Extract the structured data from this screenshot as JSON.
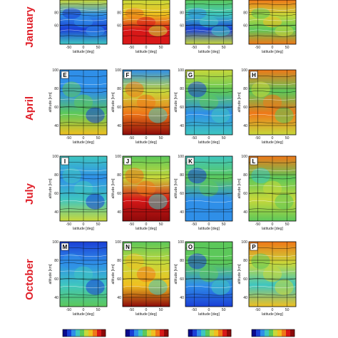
{
  "chart_data": {
    "type": "heatmap",
    "rows": [
      "January",
      "April",
      "July",
      "October"
    ],
    "panel_letters": [
      [
        "",
        "",
        "",
        ""
      ],
      [
        "E",
        "F",
        "G",
        "H"
      ],
      [
        "I",
        "J",
        "K",
        "L"
      ],
      [
        "M",
        "N",
        "O",
        "P"
      ]
    ],
    "xlabel": "latitude [deg]",
    "ylabel": "altitude [km]",
    "x_ticks": [
      "-50",
      "0",
      "50"
    ],
    "y_ticks": [
      "40",
      "60",
      "80",
      "100"
    ],
    "y_ticks_top": [
      "60",
      "80"
    ],
    "xlim": [
      -80,
      80
    ],
    "ylim": [
      30,
      100
    ],
    "colormap": [
      "#0a0a8c",
      "#1a3fd6",
      "#2f8fe8",
      "#3fc6c0",
      "#5cc85a",
      "#c8d83a",
      "#f0c020",
      "#f07818",
      "#d81818",
      "#8c0a0a"
    ],
    "colorbars": 4,
    "field_values": {
      "0_0": [
        0.3,
        0.1,
        0.22,
        0.55
      ],
      "0_1": [
        0.85,
        0.8,
        0.65,
        0.55
      ],
      "0_2": [
        0.55,
        0.18,
        0.35,
        0.45
      ],
      "0_3": [
        0.7,
        0.45,
        0.55,
        0.75
      ],
      "1_0": [
        0.6,
        0.45,
        0.25,
        0.2
      ],
      "1_1": [
        0.92,
        0.7,
        0.55,
        0.25
      ],
      "1_2": [
        0.35,
        0.2,
        0.4,
        0.5
      ],
      "1_3": [
        0.5,
        0.75,
        0.45,
        0.7
      ],
      "2_0": [
        0.5,
        0.35,
        0.2,
        0.3
      ],
      "2_1": [
        0.9,
        0.8,
        0.55,
        0.4
      ],
      "2_2": [
        0.25,
        0.2,
        0.4,
        0.35
      ],
      "2_3": [
        0.4,
        0.5,
        0.45,
        0.7
      ],
      "3_0": [
        0.4,
        0.3,
        0.25,
        0.15
      ],
      "3_1": [
        0.9,
        0.65,
        0.55,
        0.4
      ],
      "3_2": [
        0.15,
        0.25,
        0.4,
        0.45
      ],
      "3_3": [
        0.65,
        0.35,
        0.55,
        0.7
      ]
    }
  }
}
